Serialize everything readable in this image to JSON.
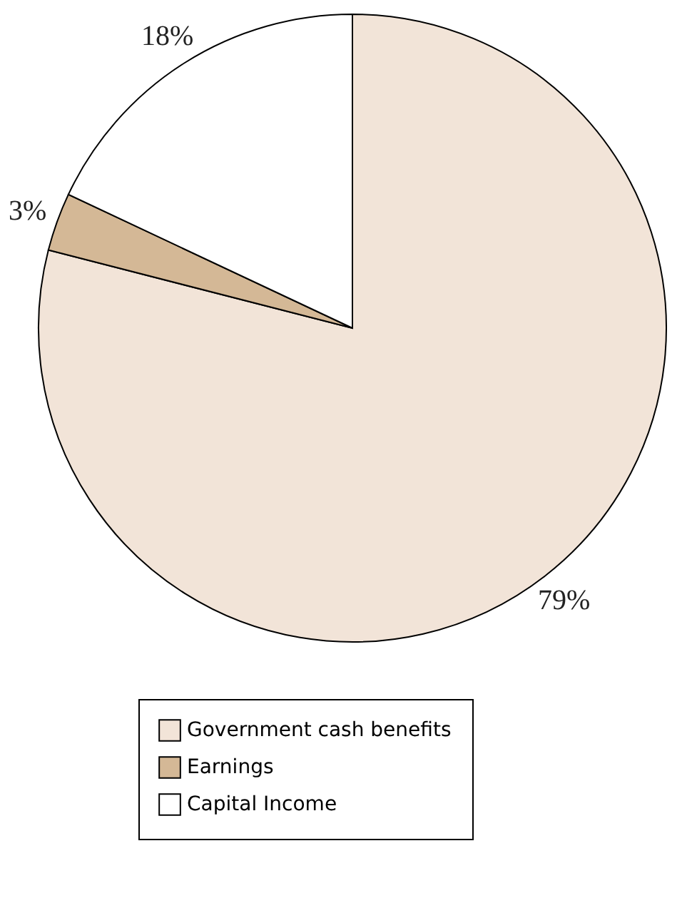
{
  "chart_data": {
    "type": "pie",
    "categories": [
      "Government cash benefits",
      "Earnings",
      "Capital Income"
    ],
    "values": [
      79,
      3,
      18
    ],
    "colors": [
      "#f2e4d8",
      "#d4b896",
      "#ffffff"
    ],
    "value_labels": [
      "79%",
      "3%",
      "18%"
    ],
    "legend": "bottom"
  }
}
